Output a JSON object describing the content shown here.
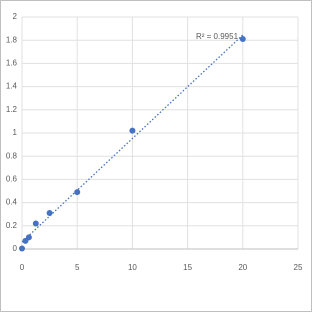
{
  "chart_data": {
    "type": "scatter",
    "x": [
      0,
      0.3125,
      0.625,
      1.25,
      2.5,
      5,
      10,
      20
    ],
    "series": [
      {
        "color": "#4472c4",
        "values": [
          0.004,
          0.07,
          0.1,
          0.22,
          0.31,
          0.49,
          1.02,
          1.81
        ]
      }
    ],
    "annotation": "R² = 0.9951",
    "trendline": "linear",
    "xlim": [
      0,
      25
    ],
    "xticks": [
      0,
      5,
      10,
      15,
      20,
      25
    ],
    "ylim": [
      0,
      2
    ],
    "yticks": [
      0,
      0.2,
      0.4,
      0.6,
      0.8,
      1,
      1.2,
      1.4,
      1.6,
      1.8,
      2
    ],
    "grid": true
  }
}
